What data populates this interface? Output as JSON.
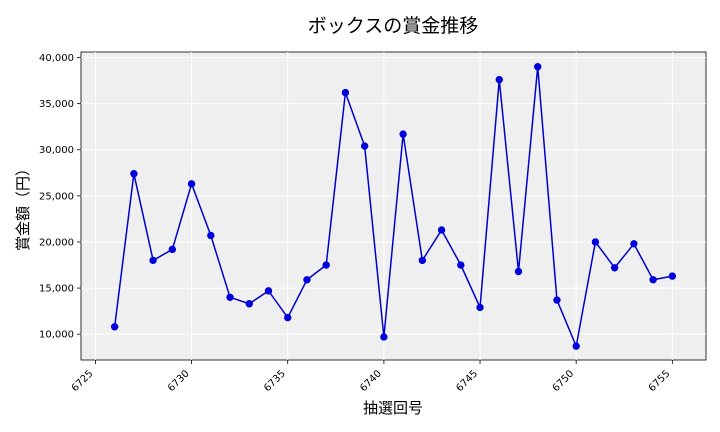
{
  "chart_data": {
    "type": "line",
    "title": "ボックスの賞金推移",
    "xlabel": "抽選回号",
    "ylabel": "賞金額（円）",
    "xlim": [
      6724.25,
      6756.75
    ],
    "ylim": [
      7200,
      40600
    ],
    "x_ticks": [
      6725,
      6730,
      6735,
      6740,
      6745,
      6750,
      6755
    ],
    "y_ticks": [
      10000,
      15000,
      20000,
      25000,
      30000,
      35000,
      40000
    ],
    "y_tick_labels": [
      "10,000",
      "15,000",
      "20,000",
      "25,000",
      "30,000",
      "35,000",
      "40,000"
    ],
    "grid": true,
    "line_color": "#0000cc",
    "marker_color": "#0000dd",
    "plot_background": "#efefef",
    "series": [
      {
        "x": [
          6726,
          6727,
          6728,
          6729,
          6730,
          6731,
          6732,
          6733,
          6734,
          6735,
          6736,
          6737,
          6738,
          6739,
          6740,
          6741,
          6742,
          6743,
          6744,
          6745,
          6746,
          6747,
          6748,
          6749,
          6750,
          6751,
          6752,
          6753,
          6754,
          6755
        ],
        "values": [
          10800,
          27400,
          18000,
          19200,
          26300,
          20700,
          14000,
          13300,
          14700,
          11800,
          15900,
          17500,
          36200,
          30400,
          9700,
          31700,
          18000,
          21300,
          17500,
          12900,
          37600,
          16800,
          39000,
          13700,
          8700,
          20000,
          17200,
          19800,
          15900,
          16300
        ]
      }
    ]
  }
}
